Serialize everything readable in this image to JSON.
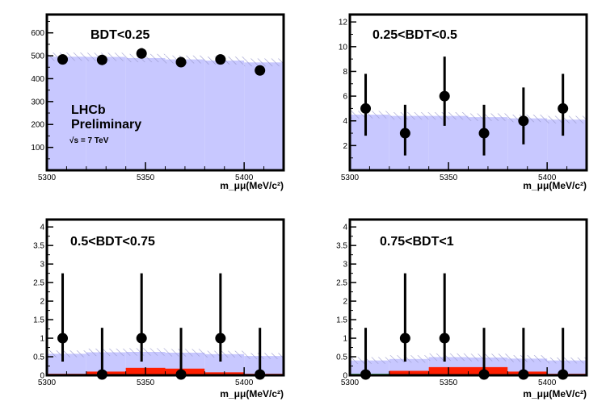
{
  "annotation": {
    "experiment": "LHCb",
    "status": "Preliminary",
    "energy": "√s = 7 TeV"
  },
  "colors": {
    "band": "#c8c8ff",
    "hatch": "#9898cc",
    "red": "#ff1e00",
    "green": "#34d43f",
    "frame": "#000000",
    "data": "#000000"
  },
  "chart_data": [
    {
      "type": "histogram-with-data-points",
      "title": "BDT<0.25",
      "xlabel": "m_μμ(MeV/c²)",
      "xlim": [
        5300,
        5420
      ],
      "ylim": [
        0,
        680
      ],
      "xticks": [
        5300,
        5350,
        5400
      ],
      "yticks": [
        100,
        200,
        300,
        400,
        500,
        600
      ],
      "ytick_labels": [
        "100",
        "200",
        "300",
        "400",
        "500",
        "600"
      ],
      "bin_edges": [
        5300,
        5320,
        5340,
        5360,
        5380,
        5400,
        5420
      ],
      "data_x": [
        5308,
        5328,
        5348,
        5368,
        5388,
        5408
      ],
      "data_y": [
        484,
        482,
        510,
        472,
        484,
        436
      ],
      "data_err_low": [
        22,
        22,
        22,
        21,
        22,
        21
      ],
      "data_err_high": [
        22,
        22,
        23,
        22,
        22,
        21
      ],
      "band_center": [
        496,
        495,
        490,
        484,
        479,
        471
      ],
      "band_halfwidth": [
        18,
        18,
        18,
        17,
        17,
        17
      ],
      "red": [
        0,
        0,
        0,
        0,
        0,
        0
      ],
      "green": [
        0,
        0,
        0,
        0,
        0,
        0
      ]
    },
    {
      "type": "histogram-with-data-points",
      "title": "0.25<BDT<0.5",
      "xlabel": "m_μμ(MeV/c²)",
      "xlim": [
        5300,
        5420
      ],
      "ylim": [
        0,
        12.6
      ],
      "xticks": [
        5300,
        5350,
        5400
      ],
      "yticks": [
        2,
        4,
        6,
        8,
        10,
        12
      ],
      "ytick_labels": [
        "2",
        "4",
        "6",
        "8",
        "10",
        "12"
      ],
      "bin_edges": [
        5300,
        5320,
        5340,
        5360,
        5380,
        5400,
        5420
      ],
      "data_x": [
        5308,
        5328,
        5348,
        5368,
        5388,
        5408
      ],
      "data_y": [
        5,
        3,
        6,
        3,
        4,
        5
      ],
      "data_err_low": [
        2.2,
        1.8,
        2.4,
        1.8,
        1.9,
        2.2
      ],
      "data_err_high": [
        2.8,
        2.3,
        3.2,
        2.3,
        2.7,
        2.8
      ],
      "band_center": [
        4.5,
        4.4,
        4.4,
        4.3,
        4.2,
        4.1
      ],
      "band_halfwidth": [
        0.3,
        0.3,
        0.3,
        0.3,
        0.3,
        0.3
      ],
      "red": [
        0.02,
        0.06,
        0.1,
        0.1,
        0.06,
        0.02
      ],
      "green": [
        0.01,
        0.01,
        0.01,
        0.01,
        0.01,
        0.01
      ]
    },
    {
      "type": "histogram-with-data-points",
      "title": "0.5<BDT<0.75",
      "xlabel": "m_μμ(MeV/c²)",
      "xlim": [
        5300,
        5420
      ],
      "ylim": [
        0,
        4.2
      ],
      "xticks": [
        5300,
        5350,
        5400
      ],
      "yticks": [
        0,
        0.5,
        1,
        1.5,
        2,
        2.5,
        3,
        3.5,
        4
      ],
      "ytick_labels": [
        "0",
        "0.5",
        "1",
        "1.5",
        "2",
        "2.5",
        "3",
        "3.5",
        "4"
      ],
      "bin_edges": [
        5300,
        5320,
        5340,
        5360,
        5380,
        5400,
        5420
      ],
      "data_x": [
        5308,
        5328,
        5348,
        5368,
        5388,
        5408
      ],
      "data_y": [
        1,
        0,
        1,
        0,
        1,
        0
      ],
      "data_err_low": [
        0.63,
        0,
        0.63,
        0,
        0.63,
        0
      ],
      "data_err_high": [
        1.75,
        1.28,
        1.75,
        1.28,
        1.75,
        1.28
      ],
      "band_center": [
        0.58,
        0.62,
        0.63,
        0.61,
        0.57,
        0.52
      ],
      "band_halfwidth": [
        0.09,
        0.1,
        0.1,
        0.1,
        0.09,
        0.08
      ],
      "red": [
        0.04,
        0.1,
        0.2,
        0.18,
        0.08,
        0.04
      ],
      "green": [
        0.02,
        0.02,
        0.02,
        0.02,
        0.01,
        0.01
      ]
    },
    {
      "type": "histogram-with-data-points",
      "title": "0.75<BDT<1",
      "xlabel": "m_μμ(MeV/c²)",
      "xlim": [
        5300,
        5420
      ],
      "ylim": [
        0,
        4.2
      ],
      "xticks": [
        5300,
        5350,
        5400
      ],
      "yticks": [
        0,
        0.5,
        1,
        1.5,
        2,
        2.5,
        3,
        3.5,
        4
      ],
      "ytick_labels": [
        "0",
        "0.5",
        "1",
        "1.5",
        "2",
        "2.5",
        "3",
        "3.5",
        "4"
      ],
      "bin_edges": [
        5300,
        5320,
        5340,
        5360,
        5380,
        5400,
        5420
      ],
      "data_x": [
        5308,
        5328,
        5348,
        5368,
        5388,
        5408
      ],
      "data_y": [
        0,
        1,
        1,
        0,
        0,
        0
      ],
      "data_err_low": [
        0,
        0.63,
        0.63,
        0,
        0,
        0
      ],
      "data_err_high": [
        1.28,
        1.75,
        1.75,
        1.28,
        1.28,
        1.28
      ],
      "band_center": [
        0.4,
        0.44,
        0.49,
        0.48,
        0.45,
        0.4
      ],
      "band_halfwidth": [
        0.09,
        0.1,
        0.1,
        0.1,
        0.09,
        0.08
      ],
      "red": [
        0.02,
        0.12,
        0.22,
        0.22,
        0.1,
        0.04
      ],
      "green": [
        0.04,
        0.03,
        0.02,
        0.02,
        0.01,
        0.01
      ]
    }
  ]
}
